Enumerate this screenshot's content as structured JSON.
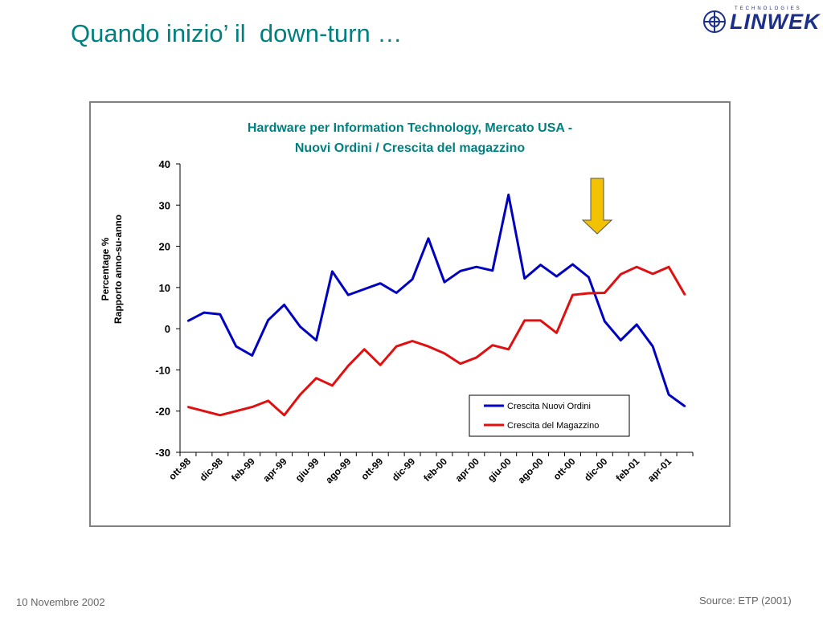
{
  "slide": {
    "title": "Quando inizio’ il  down-turn …",
    "footer_date": "10 Novembre 2002",
    "footer_source": "Source: ETP (2001)"
  },
  "logo": {
    "word": "LINWEK",
    "subtitle": "TECHNOLOGIES"
  },
  "colors": {
    "title": "#008080",
    "series_orders": "#0000c0",
    "series_inventory": "#e01010",
    "arrow_fill": "#f2c200",
    "logo": "#1c2f8a"
  },
  "chart_data": {
    "type": "line",
    "title_lines": [
      "Hardware per Information Technology,  Mercato USA -",
      "Nuovi Ordini / Crescita del magazzino"
    ],
    "ylabel_lines": [
      "Percentage %",
      "Rapporto anno-su-anno"
    ],
    "ylim": [
      -30,
      40
    ],
    "yticks": [
      40,
      30,
      20,
      10,
      0,
      -10,
      -20,
      -30
    ],
    "x": [
      "ott-98",
      "nov-98",
      "dic-98",
      "gen-99",
      "feb-99",
      "mar-99",
      "apr-99",
      "mag-99",
      "giu-99",
      "lug-99",
      "ago-99",
      "set-99",
      "ott-99",
      "nov-99",
      "dic-99",
      "gen-00",
      "feb-00",
      "mar-00",
      "apr-00",
      "mag-00",
      "giu-00",
      "lug-00",
      "ago-00",
      "set-00",
      "ott-00",
      "nov-00",
      "dic-00",
      "gen-01",
      "feb-01",
      "mar-01",
      "apr-01",
      "mag-01"
    ],
    "xtick_labels": [
      "ott-98",
      "dic-98",
      "feb-99",
      "apr-99",
      "giu-99",
      "ago-99",
      "ott-99",
      "dic-99",
      "feb-00",
      "apr-00",
      "giu-00",
      "ago-00",
      "ott-00",
      "dic-00",
      "feb-01",
      "apr-01"
    ],
    "series": [
      {
        "name": "Crescita Nuovi Ordini",
        "values": [
          1.9,
          3.9,
          3.5,
          -4.3,
          -6.5,
          2.1,
          5.8,
          0.5,
          -2.8,
          13.9,
          8.2,
          9.6,
          11.0,
          8.7,
          12.0,
          21.9,
          11.3,
          14.0,
          15.0,
          14.1,
          32.5,
          12.2,
          15.5,
          12.7,
          15.6,
          12.5,
          1.8,
          -2.8,
          1.0,
          -4.3,
          -16.0,
          -18.8
        ]
      },
      {
        "name": "Crescita del Magazzino",
        "values": [
          -19.0,
          -20.0,
          -21.0,
          -20.0,
          -19.0,
          -17.5,
          -21.0,
          -16.0,
          -12.0,
          -13.8,
          -9.0,
          -5.0,
          -8.8,
          -4.3,
          -3.0,
          -4.3,
          -6.0,
          -8.5,
          -7.0,
          -4.0,
          -5.0,
          2.0,
          2.0,
          -1.0,
          8.2,
          8.6,
          8.7,
          13.2,
          15.0,
          13.3,
          15.0,
          8.3
        ]
      }
    ],
    "legend_placement": "lower-right",
    "grid": false,
    "annotation": "downward arrow above dic-00"
  }
}
